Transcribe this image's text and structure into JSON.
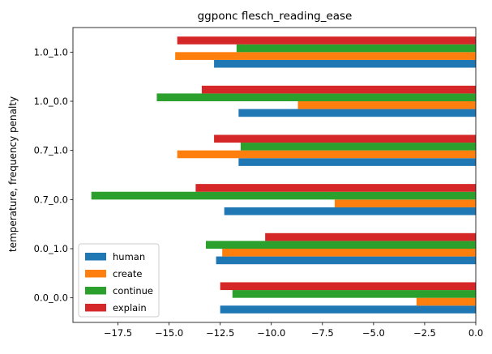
{
  "chart_data": {
    "type": "bar",
    "orientation": "horizontal",
    "title": "ggponc flesch_reading_ease",
    "xlabel": "",
    "ylabel": "temperature, frequency penalty",
    "categories": [
      "0.0_0.0",
      "0.0_1.0",
      "0.7_0.0",
      "0.7_1.0",
      "1.0_0.0",
      "1.0_1.0"
    ],
    "xlim": [
      -19.7,
      0.0
    ],
    "xticks": [
      -17.5,
      -15.0,
      -12.5,
      -10.0,
      -7.5,
      -5.0,
      -2.5,
      0.0
    ],
    "xtick_labels": [
      "−17.5",
      "−15.0",
      "−12.5",
      "−10.0",
      "−7.5",
      "−5.0",
      "−2.5",
      "0.0"
    ],
    "grid": false,
    "legend_position": "lower-left",
    "series": [
      {
        "name": "human",
        "color": "#1f77b4",
        "values": [
          -12.5,
          -12.7,
          -12.3,
          -11.6,
          -11.6,
          -12.8
        ]
      },
      {
        "name": "create",
        "color": "#ff7f0e",
        "values": [
          -2.9,
          -12.4,
          -6.9,
          -14.6,
          -8.7,
          -14.7
        ]
      },
      {
        "name": "continue",
        "color": "#2ca02c",
        "values": [
          -11.9,
          -13.2,
          -18.8,
          -11.5,
          -15.6,
          -11.7
        ]
      },
      {
        "name": "explain",
        "color": "#d62728",
        "values": [
          -12.5,
          -10.3,
          -13.7,
          -12.8,
          -13.4,
          -14.6
        ]
      }
    ]
  }
}
